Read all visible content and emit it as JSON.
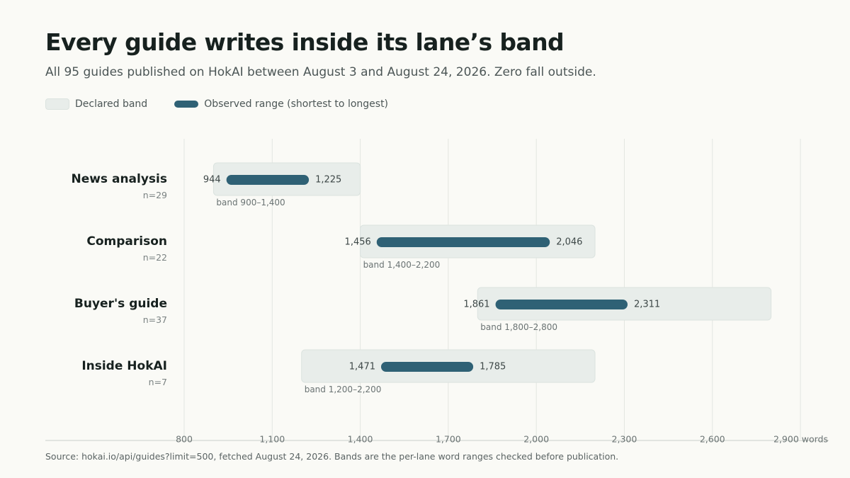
{
  "chart_data": {
    "type": "range-bar",
    "title": "Every guide writes inside its lane’s band",
    "subtitle": "All 95 guides published on HokAI between August 3 and August 24, 2026. Zero fall outside.",
    "legend": [
      {
        "name": "Declared band",
        "kind": "band"
      },
      {
        "name": "Observed range (shortest to longest)",
        "kind": "range"
      }
    ],
    "legend_position": "top-left",
    "xlim": [
      800,
      2900
    ],
    "x_ticks": [
      800,
      1100,
      1400,
      1700,
      2000,
      2300,
      2600,
      2900
    ],
    "x_tick_labels": [
      "800",
      "1,100",
      "1,400",
      "1,700",
      "2,000",
      "2,300",
      "2,600",
      "2,900 words"
    ],
    "grid": true,
    "lanes": [
      {
        "name": "News analysis",
        "n_label": "n=29",
        "band": [
          900,
          1400
        ],
        "band_label": "band 900–1,400",
        "min": 944,
        "max": 1225,
        "min_label": "944",
        "max_label": "1,225"
      },
      {
        "name": "Comparison",
        "n_label": "n=22",
        "band": [
          1400,
          2200
        ],
        "band_label": "band 1,400–2,200",
        "min": 1456,
        "max": 2046,
        "min_label": "1,456",
        "max_label": "2,046"
      },
      {
        "name": "Buyer's guide",
        "n_label": "n=37",
        "band": [
          1800,
          2800
        ],
        "band_label": "band 1,800–2,800",
        "min": 1861,
        "max": 2311,
        "min_label": "1,861",
        "max_label": "2,311"
      },
      {
        "name": "Inside HokAI",
        "n_label": "n=7",
        "band": [
          1200,
          2200
        ],
        "band_label": "band 1,200–2,200",
        "min": 1471,
        "max": 1785,
        "min_label": "1,471",
        "max_label": "1,785"
      }
    ],
    "colors": {
      "band_fill": "#e8edea",
      "band_stroke": "#dbe3df",
      "range": "#2f6175",
      "grid": "#e3e6e1",
      "axis": "#d9ddd8"
    }
  },
  "source": "Source: hokai.io/api/guides?limit=500, fetched August 24, 2026. Bands are the per-lane word ranges checked before publication."
}
